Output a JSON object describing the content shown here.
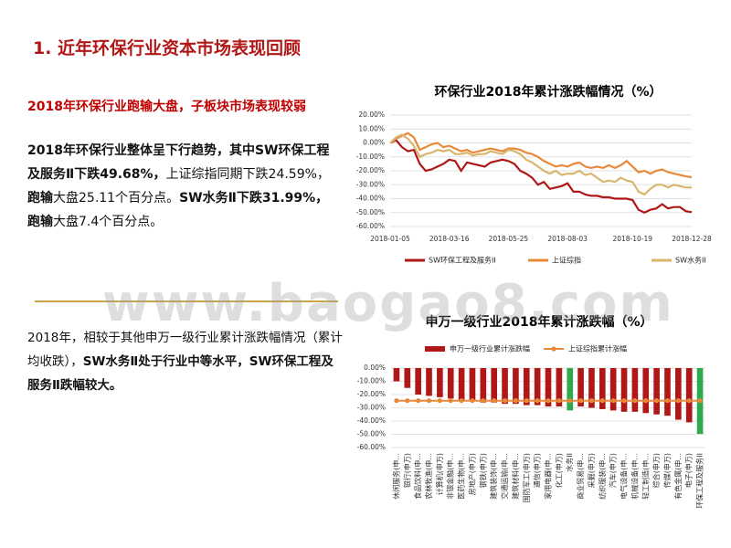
{
  "header": {
    "title": "1. 近年环保行业资本市场表现回顾"
  },
  "subtitle": "2018年环保行业跑输大盘，子板块市场表现较弱",
  "paragraphs": [
    {
      "runs": [
        {
          "text": "2018年环保行业整体呈下行趋势，其中SW环保工程及服务Ⅱ下跌49.68%，",
          "bold": true
        },
        {
          "text": "上证综指同期下跌24.59%，",
          "bold": false
        },
        {
          "text": "跑输",
          "bold": true
        },
        {
          "text": "大盘25.11个百分点。",
          "bold": false
        },
        {
          "text": "SW水务Ⅱ下跌31.99%，跑输",
          "bold": true
        },
        {
          "text": "大盘7.4个百分点。",
          "bold": false
        }
      ]
    },
    {
      "runs": [
        {
          "text": "2018年，相较于其他申万一级行业累计涨跌幅情况（累计均收跌），",
          "bold": false
        },
        {
          "text": "SW水务Ⅱ处于行业中等水平，SW环保工程及服务Ⅱ跌幅较大。",
          "bold": true
        }
      ]
    }
  ],
  "watermark": "www.baogao8.com",
  "chart_data": [
    {
      "type": "line",
      "title": "环保行业2018年累计涨跌幅情况（%）",
      "categories": [
        "2018-01-05",
        null,
        null,
        null,
        null,
        null,
        null,
        null,
        null,
        null,
        "2018-03-16",
        null,
        null,
        null,
        null,
        null,
        null,
        null,
        null,
        null,
        "2018-05-25",
        null,
        null,
        null,
        null,
        null,
        null,
        null,
        null,
        null,
        "2018-08-03",
        null,
        null,
        null,
        null,
        null,
        null,
        null,
        null,
        null,
        null,
        "2018-10-19",
        null,
        null,
        null,
        null,
        null,
        null,
        null,
        null,
        null,
        "2018-12-28"
      ],
      "series": [
        {
          "name": "SW环保工程及服务II",
          "color": "#b01818",
          "values": [
            0,
            2,
            -3,
            -6,
            -5,
            -15,
            -20,
            -19,
            -17,
            -15,
            -12,
            -13,
            -20,
            -14,
            -15,
            -16,
            -17,
            -14,
            -13,
            -12,
            -13,
            -15,
            -20,
            -22,
            -25,
            -30,
            -28,
            -33,
            -32,
            -31,
            -29,
            -35,
            -35,
            -37,
            -38,
            -38,
            -39,
            -39,
            -40,
            -40,
            -40,
            -41,
            -48,
            -50,
            -48,
            -47,
            -44,
            -47,
            -46,
            -46,
            -49,
            -49.68
          ]
        },
        {
          "name": "上证综指",
          "color": "#e8893a",
          "values": [
            0,
            3,
            5,
            7,
            4,
            -5,
            -3,
            -1,
            0,
            -3,
            -2,
            -4,
            -6,
            -5,
            -7,
            -6,
            -5,
            -4,
            -5,
            -6,
            -4,
            -4,
            -5,
            -7,
            -8,
            -10,
            -13,
            -15,
            -17,
            -16,
            -17,
            -15,
            -14,
            -17,
            -18,
            -17,
            -18,
            -16,
            -18,
            -16,
            -13,
            -17,
            -21,
            -20,
            -22,
            -20,
            -19,
            -21,
            -22,
            -23,
            -24,
            -24.59
          ]
        },
        {
          "name": "SW水务II",
          "color": "#d9b66e",
          "values": [
            0,
            4,
            6,
            3,
            -2,
            -10,
            -8,
            -7,
            -5,
            -6,
            -5,
            -8,
            -8,
            -7,
            -9,
            -8,
            -8,
            -6,
            -7,
            -8,
            -5,
            -6,
            -8,
            -12,
            -14,
            -17,
            -20,
            -22,
            -20,
            -23,
            -22,
            -22,
            -20,
            -23,
            -22,
            -25,
            -28,
            -27,
            -28,
            -25,
            -27,
            -28,
            -35,
            -37,
            -33,
            -30,
            -30,
            -32,
            -30,
            -31,
            -32,
            -31.99
          ]
        }
      ],
      "ylim": [
        -60,
        20
      ],
      "yticks": [
        {
          "value": 20,
          "label": "20.00%"
        },
        {
          "value": 10,
          "label": "10.00%"
        },
        {
          "value": 0,
          "label": "0.00%"
        },
        {
          "value": -10,
          "label": "-10.00%"
        },
        {
          "value": -20,
          "label": "-20.00%"
        },
        {
          "value": -30,
          "label": "-30.00%"
        },
        {
          "value": -40,
          "label": "-40.00%"
        },
        {
          "value": -50,
          "label": "-50.00%"
        },
        {
          "value": -60,
          "label": "-60.00%"
        }
      ],
      "grid": true
    },
    {
      "type": "bar",
      "title": "申万一级行业2018年累计涨跌幅（%）",
      "categories": [
        "休闲服务(申...",
        "银行(申万)",
        "食品饮料(申...",
        "农林牧渔(申...",
        "计算机(申万)",
        "非银金融(申...",
        "医药生物(申...",
        "房地产(申万)",
        "钢铁(申万)",
        "建筑装饰(申...",
        "交通运输(申...",
        "建筑材料(申...",
        "国防军工(申万)",
        "通信(申万)",
        "家用电器(申...",
        "化工(申万)",
        "水务II",
        "商业贸易(申...",
        "采掘(申万)",
        "纺织服装(申...",
        "汽车(申万)",
        "电气设备(申...",
        "机械设备(申...",
        "轻工制造(申...",
        "综合(申万)",
        "传媒(申万)",
        "有色金属(申...",
        "电子(申万)",
        "环保工程及服务II"
      ],
      "series": [
        {
          "name": "申万一级行业累计涨跌幅",
          "color": "#b01818",
          "colors": [
            "#b01818",
            "#b01818",
            "#b01818",
            "#b01818",
            "#b01818",
            "#b01818",
            "#b01818",
            "#b01818",
            "#b01818",
            "#b01818",
            "#b01818",
            "#b01818",
            "#b01818",
            "#b01818",
            "#b01818",
            "#b01818",
            "#2eaa4e",
            "#b01818",
            "#b01818",
            "#b01818",
            "#b01818",
            "#b01818",
            "#b01818",
            "#b01818",
            "#b01818",
            "#b01818",
            "#b01818",
            "#b01818",
            "#2eaa4e"
          ],
          "values": [
            -10,
            -15,
            -20,
            -21,
            -22,
            -23,
            -24,
            -25,
            -26,
            -26,
            -27,
            -27,
            -28,
            -28,
            -29,
            -29,
            -31.99,
            -29,
            -30,
            -31,
            -32,
            -33,
            -33,
            -34,
            -35,
            -36,
            -39,
            -41,
            -49.68
          ]
        },
        {
          "name": "上证综指累计涨幅",
          "color": "#e8893a",
          "type": "line",
          "values": [
            -24.59,
            -24.59,
            -24.59,
            -24.59,
            -24.59,
            -24.59,
            -24.59,
            -24.59,
            -24.59,
            -24.59,
            -24.59,
            -24.59,
            -24.59,
            -24.59,
            -24.59,
            -24.59,
            -24.59,
            -24.59,
            -24.59,
            -24.59,
            -24.59,
            -24.59,
            -24.59,
            -24.59,
            -24.59,
            -24.59,
            -24.59,
            -24.59,
            -24.59
          ]
        }
      ],
      "ylim": [
        -60,
        0
      ],
      "yticks": [
        {
          "value": 0,
          "label": "0.00%"
        },
        {
          "value": -10,
          "label": "-10.00%"
        },
        {
          "value": -20,
          "label": "-20.00%"
        },
        {
          "value": -30,
          "label": "-30.00%"
        },
        {
          "value": -40,
          "label": "-40.00%"
        },
        {
          "value": -50,
          "label": "-50.00%"
        },
        {
          "value": -60,
          "label": "-60.00%"
        }
      ],
      "grid": true
    }
  ]
}
